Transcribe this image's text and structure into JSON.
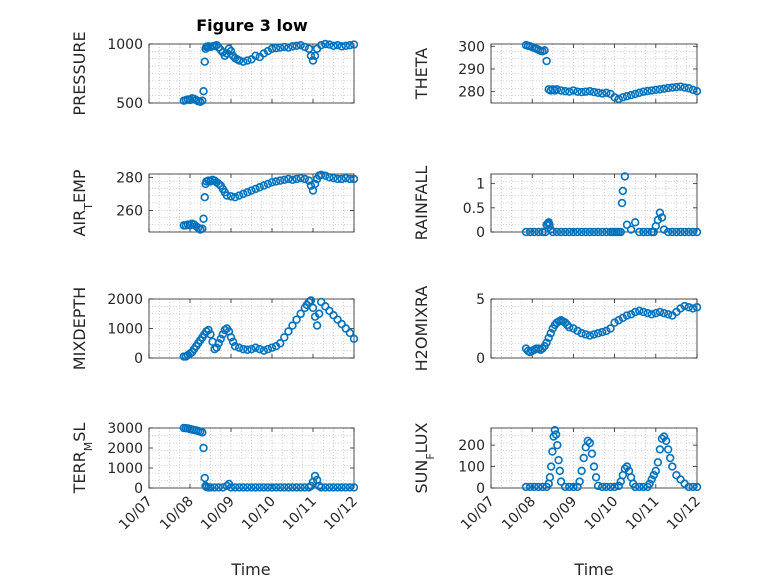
{
  "figure_title": "Figure 3 low",
  "colors": {
    "marker": "#0072bd",
    "grid": "#b0b0b0",
    "axis": "#262626"
  },
  "chart_data": [
    {
      "type": "scatter",
      "ylabel": "PRESSURE",
      "ylim": [
        500,
        1000
      ],
      "yticks": [
        500,
        1000
      ],
      "x": [
        7.85,
        7.9,
        7.95,
        8.0,
        8.05,
        8.1,
        8.15,
        8.2,
        8.25,
        8.3,
        8.33,
        8.36,
        8.38,
        8.4,
        8.42,
        8.45,
        8.5,
        8.55,
        8.6,
        8.65,
        8.7,
        8.75,
        8.8,
        8.85,
        8.9,
        8.95,
        9.0,
        9.05,
        9.1,
        9.15,
        9.2,
        9.3,
        9.4,
        9.5,
        9.6,
        9.7,
        9.8,
        9.9,
        10.0,
        10.1,
        10.2,
        10.3,
        10.4,
        10.5,
        10.6,
        10.7,
        10.8,
        10.9,
        10.95,
        11.0,
        11.05,
        11.1,
        11.2,
        11.3,
        11.4,
        11.5,
        11.6,
        11.7,
        11.8,
        11.9,
        12.0
      ],
      "y": [
        520,
        525,
        530,
        525,
        540,
        535,
        525,
        515,
        510,
        520,
        600,
        850,
        960,
        975,
        978,
        980,
        975,
        980,
        985,
        990,
        970,
        950,
        930,
        900,
        920,
        960,
        940,
        900,
        880,
        870,
        860,
        850,
        860,
        870,
        900,
        890,
        920,
        940,
        960,
        965,
        970,
        975,
        970,
        980,
        985,
        990,
        975,
        960,
        900,
        860,
        900,
        960,
        990,
        1000,
        995,
        985,
        990,
        980,
        985,
        990,
        995
      ]
    },
    {
      "type": "scatter",
      "ylabel": "THETA",
      "ylim": [
        275,
        301
      ],
      "yticks": [
        280,
        290,
        300
      ],
      "x": [
        7.85,
        7.9,
        7.95,
        8.0,
        8.05,
        8.1,
        8.15,
        8.2,
        8.25,
        8.3,
        8.35,
        8.4,
        8.45,
        8.5,
        8.55,
        8.6,
        8.7,
        8.8,
        8.9,
        9.0,
        9.1,
        9.2,
        9.3,
        9.4,
        9.5,
        9.6,
        9.7,
        9.8,
        9.9,
        10.0,
        10.1,
        10.2,
        10.3,
        10.4,
        10.5,
        10.6,
        10.7,
        10.8,
        10.9,
        11.0,
        11.1,
        11.2,
        11.3,
        11.4,
        11.5,
        11.6,
        11.7,
        11.8,
        11.9,
        12.0
      ],
      "y": [
        300.5,
        300.2,
        300,
        299.6,
        299.2,
        298.9,
        298.5,
        298,
        297.8,
        298.2,
        293.5,
        281,
        280.5,
        281,
        280.5,
        281,
        280.5,
        280.2,
        280,
        280.5,
        280,
        279.8,
        280,
        280.2,
        279.8,
        279.5,
        279.2,
        279.5,
        279,
        277.5,
        276.8,
        277.5,
        278,
        278.5,
        279,
        279.5,
        280,
        280.3,
        280.5,
        280.8,
        281,
        281.3,
        281.6,
        281.8,
        282,
        282.2,
        281.8,
        281.5,
        280.8,
        280.2
      ]
    },
    {
      "type": "scatter",
      "ylabel": "AIR",
      "ylabel_sub": "T",
      "ylabel_rest": "EMP",
      "ylim": [
        247,
        282
      ],
      "yticks": [
        260,
        280
      ],
      "x": [
        7.85,
        7.9,
        7.95,
        8.0,
        8.05,
        8.1,
        8.15,
        8.2,
        8.25,
        8.3,
        8.33,
        8.36,
        8.38,
        8.4,
        8.45,
        8.5,
        8.55,
        8.6,
        8.65,
        8.7,
        8.75,
        8.8,
        8.85,
        8.9,
        9.0,
        9.1,
        9.2,
        9.3,
        9.4,
        9.5,
        9.6,
        9.7,
        9.8,
        9.9,
        10.0,
        10.1,
        10.2,
        10.3,
        10.4,
        10.5,
        10.6,
        10.7,
        10.8,
        10.9,
        10.95,
        11.0,
        11.05,
        11.1,
        11.15,
        11.2,
        11.3,
        11.4,
        11.5,
        11.6,
        11.7,
        11.8,
        11.9,
        12.0
      ],
      "y": [
        251,
        251,
        251.5,
        251,
        252,
        251.5,
        250.5,
        249.5,
        248.5,
        249,
        255,
        268,
        276,
        277.5,
        278,
        277.5,
        278.5,
        278,
        277,
        276,
        275,
        273,
        271,
        269,
        268.5,
        268,
        269,
        270,
        271,
        272,
        273,
        274,
        275,
        276,
        277,
        277.5,
        278,
        278.5,
        279,
        278.5,
        279,
        279.5,
        279,
        278,
        275,
        272,
        276,
        279,
        281,
        281.5,
        281,
        280,
        279.5,
        279,
        279,
        279.5,
        279,
        279
      ]
    },
    {
      "type": "scatter",
      "ylabel": "RAINFALL",
      "ylim": [
        0,
        1.2
      ],
      "yticks": [
        0,
        0.5,
        1
      ],
      "ytick_labels": [
        "0",
        "0.5",
        "1"
      ],
      "x": [
        7.85,
        7.95,
        8.05,
        8.15,
        8.25,
        8.32,
        8.35,
        8.38,
        8.4,
        8.42,
        8.45,
        8.5,
        8.6,
        8.7,
        8.8,
        8.9,
        9.0,
        9.1,
        9.2,
        9.3,
        9.4,
        9.5,
        9.6,
        9.7,
        9.8,
        9.9,
        9.95,
        10.0,
        10.05,
        10.1,
        10.15,
        10.18,
        10.2,
        10.25,
        10.3,
        10.4,
        10.5,
        10.6,
        10.7,
        10.8,
        10.9,
        10.95,
        11.0,
        11.05,
        11.1,
        11.15,
        11.2,
        11.3,
        11.4,
        11.5,
        11.6,
        11.7,
        11.8,
        11.9,
        12.0
      ],
      "y": [
        0,
        0,
        0,
        0,
        0,
        0,
        0.15,
        0.18,
        0.2,
        0.15,
        0.05,
        0,
        0,
        0,
        0,
        0,
        0,
        0,
        0,
        0,
        0,
        0,
        0,
        0,
        0,
        0,
        0,
        0,
        0,
        0,
        0,
        0.6,
        0.85,
        1.15,
        0.15,
        0.05,
        0.2,
        0,
        0,
        0,
        0,
        0,
        0.12,
        0.25,
        0.4,
        0.3,
        0.05,
        0,
        0,
        0,
        0,
        0,
        0,
        0,
        0
      ]
    },
    {
      "type": "scatter",
      "ylabel": "MIXDEPTH",
      "ylim": [
        0,
        2000
      ],
      "yticks": [
        0,
        1000,
        2000
      ],
      "x": [
        7.85,
        7.9,
        7.95,
        8.0,
        8.05,
        8.1,
        8.15,
        8.2,
        8.25,
        8.3,
        8.35,
        8.4,
        8.45,
        8.5,
        8.55,
        8.6,
        8.65,
        8.7,
        8.75,
        8.8,
        8.85,
        8.9,
        8.95,
        9.0,
        9.05,
        9.1,
        9.2,
        9.3,
        9.4,
        9.5,
        9.6,
        9.7,
        9.8,
        9.9,
        10.0,
        10.1,
        10.2,
        10.3,
        10.4,
        10.5,
        10.6,
        10.7,
        10.8,
        10.85,
        10.9,
        10.95,
        11.0,
        11.05,
        11.1,
        11.15,
        11.2,
        11.3,
        11.4,
        11.5,
        11.6,
        11.7,
        11.8,
        11.9,
        12.0
      ],
      "y": [
        50,
        50,
        100,
        150,
        200,
        300,
        400,
        500,
        600,
        700,
        800,
        900,
        950,
        800,
        550,
        300,
        350,
        500,
        650,
        800,
        950,
        1000,
        900,
        700,
        550,
        400,
        350,
        300,
        280,
        300,
        350,
        300,
        250,
        300,
        350,
        400,
        500,
        700,
        900,
        1100,
        1300,
        1500,
        1700,
        1800,
        1900,
        1950,
        1700,
        1400,
        1100,
        1500,
        1900,
        1750,
        1600,
        1450,
        1300,
        1150,
        1000,
        850,
        650
      ]
    },
    {
      "type": "scatter",
      "ylabel": "H2OMIXRA",
      "ylim": [
        0,
        5
      ],
      "yticks": [
        0,
        5
      ],
      "x": [
        7.85,
        7.9,
        7.95,
        8.0,
        8.05,
        8.1,
        8.15,
        8.2,
        8.25,
        8.3,
        8.35,
        8.4,
        8.45,
        8.5,
        8.55,
        8.6,
        8.65,
        8.7,
        8.75,
        8.8,
        8.85,
        8.9,
        9.0,
        9.1,
        9.2,
        9.3,
        9.4,
        9.5,
        9.6,
        9.7,
        9.8,
        9.9,
        10.0,
        10.1,
        10.2,
        10.3,
        10.4,
        10.5,
        10.6,
        10.7,
        10.8,
        10.9,
        11.0,
        11.1,
        11.2,
        11.3,
        11.4,
        11.5,
        11.6,
        11.7,
        11.8,
        11.9,
        12.0
      ],
      "y": [
        0.8,
        0.6,
        0.5,
        0.6,
        0.7,
        0.8,
        0.8,
        0.7,
        0.8,
        1.0,
        1.3,
        1.7,
        2.1,
        2.5,
        2.8,
        3.0,
        3.1,
        3.2,
        3.1,
        3.0,
        2.8,
        2.6,
        2.5,
        2.3,
        2.1,
        2.0,
        1.9,
        2.0,
        2.1,
        2.2,
        2.3,
        2.5,
        3.0,
        3.2,
        3.4,
        3.6,
        3.7,
        3.9,
        4.0,
        3.9,
        3.8,
        3.7,
        3.8,
        3.9,
        3.8,
        3.7,
        3.6,
        3.9,
        4.2,
        4.4,
        4.3,
        4.2,
        4.3
      ]
    },
    {
      "type": "scatter",
      "ylabel": "TERR",
      "ylabel_sub": "M",
      "ylabel_rest": "SL",
      "ylim": [
        0,
        3000
      ],
      "yticks": [
        0,
        1000,
        2000,
        3000
      ],
      "x": [
        7.85,
        7.9,
        7.95,
        8.0,
        8.05,
        8.1,
        8.15,
        8.2,
        8.25,
        8.3,
        8.33,
        8.36,
        8.38,
        8.4,
        8.45,
        8.5,
        8.6,
        8.7,
        8.8,
        8.9,
        8.95,
        9.0,
        9.1,
        9.2,
        9.3,
        9.4,
        9.5,
        9.6,
        9.7,
        9.8,
        9.9,
        10.0,
        10.1,
        10.2,
        10.3,
        10.4,
        10.5,
        10.6,
        10.7,
        10.8,
        10.9,
        10.95,
        11.0,
        11.05,
        11.1,
        11.15,
        11.2,
        11.3,
        11.4,
        11.5,
        11.6,
        11.7,
        11.8,
        11.9,
        12.0
      ],
      "y": [
        3000,
        2990,
        2980,
        2950,
        2920,
        2900,
        2880,
        2850,
        2820,
        2780,
        2000,
        500,
        100,
        50,
        30,
        30,
        30,
        30,
        30,
        100,
        200,
        30,
        30,
        30,
        30,
        30,
        30,
        30,
        30,
        30,
        30,
        30,
        30,
        30,
        30,
        30,
        30,
        30,
        30,
        30,
        30,
        100,
        300,
        600,
        400,
        100,
        30,
        30,
        30,
        30,
        30,
        30,
        30,
        30,
        30
      ]
    },
    {
      "type": "scatter",
      "ylabel": "SUN",
      "ylabel_sub": "F",
      "ylabel_rest": "LUX",
      "ylim": [
        0,
        280
      ],
      "yticks": [
        0,
        100,
        200
      ],
      "x": [
        7.85,
        7.95,
        8.05,
        8.15,
        8.25,
        8.35,
        8.4,
        8.43,
        8.46,
        8.49,
        8.52,
        8.55,
        8.58,
        8.61,
        8.64,
        8.67,
        8.7,
        8.8,
        8.9,
        9.0,
        9.1,
        9.15,
        9.2,
        9.25,
        9.3,
        9.35,
        9.4,
        9.45,
        9.5,
        9.55,
        9.6,
        9.7,
        9.8,
        9.9,
        10.0,
        10.1,
        10.15,
        10.2,
        10.25,
        10.3,
        10.35,
        10.4,
        10.45,
        10.5,
        10.6,
        10.7,
        10.8,
        10.85,
        10.9,
        10.95,
        11.0,
        11.05,
        11.1,
        11.15,
        11.2,
        11.25,
        11.3,
        11.35,
        11.4,
        11.5,
        11.6,
        11.7,
        11.8,
        11.9,
        12.0
      ],
      "y": [
        5,
        5,
        5,
        5,
        5,
        5,
        20,
        50,
        100,
        170,
        240,
        270,
        250,
        200,
        130,
        80,
        30,
        5,
        5,
        5,
        5,
        30,
        80,
        140,
        190,
        220,
        210,
        160,
        100,
        50,
        10,
        5,
        5,
        5,
        5,
        10,
        30,
        60,
        90,
        100,
        80,
        50,
        20,
        5,
        5,
        5,
        5,
        20,
        40,
        60,
        80,
        120,
        180,
        230,
        240,
        220,
        180,
        140,
        100,
        60,
        40,
        20,
        5,
        5,
        5
      ]
    }
  ],
  "xaxis": {
    "label": "Time",
    "ticks": [
      7,
      8,
      9,
      10,
      11,
      12
    ],
    "tick_labels": [
      "10/07",
      "10/08",
      "10/09",
      "10/10",
      "10/11",
      "10/12"
    ]
  }
}
